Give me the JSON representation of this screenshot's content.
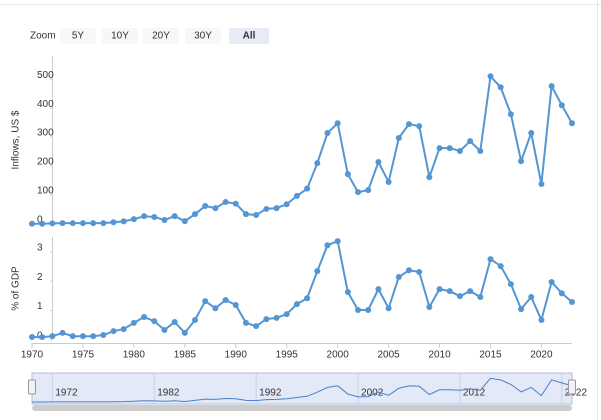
{
  "range_selector": {
    "label": "Zoom",
    "buttons": [
      "5Y",
      "10Y",
      "20Y",
      "30Y",
      "All"
    ],
    "selected": 4
  },
  "chart_data": [
    {
      "type": "line",
      "ylabel": "Inflows, US $",
      "color": "#5496d4",
      "x": [
        1970,
        1971,
        1972,
        1973,
        1974,
        1975,
        1976,
        1977,
        1978,
        1979,
        1980,
        1981,
        1982,
        1983,
        1984,
        1985,
        1986,
        1987,
        1988,
        1989,
        1990,
        1991,
        1992,
        1993,
        1994,
        1995,
        1996,
        1997,
        1998,
        1999,
        2000,
        2001,
        2002,
        2003,
        2004,
        2005,
        2006,
        2007,
        2008,
        2009,
        2010,
        2011,
        2012,
        2013,
        2014,
        2015,
        2016,
        2017,
        2018,
        2019,
        2020,
        2021,
        2022,
        2023
      ],
      "values": [
        1,
        1,
        2,
        3,
        3,
        3,
        3,
        3,
        6,
        9,
        17,
        27,
        24,
        14,
        27,
        10,
        34,
        62,
        55,
        76,
        70,
        34,
        31,
        52,
        55,
        68,
        97,
        122,
        210,
        314,
        348,
        172,
        110,
        117,
        214,
        145,
        297,
        345,
        338,
        162,
        262,
        262,
        252,
        286,
        252,
        510,
        472,
        379,
        217,
        314,
        138,
        476,
        410,
        348
      ],
      "xlim": [
        1970,
        2023
      ],
      "ylim": [
        0,
        580
      ],
      "yticks": [
        0,
        100,
        200,
        300,
        400,
        500
      ]
    },
    {
      "type": "line",
      "ylabel": "% of GDP",
      "color": "#5496d4",
      "x": [
        1970,
        1971,
        1972,
        1973,
        1974,
        1975,
        1976,
        1977,
        1978,
        1979,
        1980,
        1981,
        1982,
        1983,
        1984,
        1985,
        1986,
        1987,
        1988,
        1989,
        1990,
        1991,
        1992,
        1993,
        1994,
        1995,
        1996,
        1997,
        1998,
        1999,
        2000,
        2001,
        2002,
        2003,
        2004,
        2005,
        2006,
        2007,
        2008,
        2009,
        2010,
        2011,
        2012,
        2013,
        2014,
        2015,
        2016,
        2017,
        2018,
        2019,
        2020,
        2021,
        2022,
        2023
      ],
      "values": [
        0.1,
        0.1,
        0.13,
        0.24,
        0.13,
        0.13,
        0.13,
        0.17,
        0.3,
        0.37,
        0.58,
        0.78,
        0.64,
        0.34,
        0.61,
        0.24,
        0.68,
        1.32,
        1.08,
        1.36,
        1.19,
        0.58,
        0.47,
        0.71,
        0.75,
        0.88,
        1.22,
        1.42,
        2.34,
        3.22,
        3.36,
        1.63,
        1.02,
        1.02,
        1.73,
        1.08,
        2.14,
        2.37,
        2.31,
        1.12,
        1.73,
        1.66,
        1.49,
        1.66,
        1.46,
        2.75,
        2.51,
        1.9,
        1.05,
        1.46,
        0.68,
        1.97,
        1.59,
        1.29
      ],
      "xlim": [
        1970,
        2023
      ],
      "ylim": [
        0,
        3.5
      ],
      "yticks": [
        0,
        1,
        2,
        3
      ],
      "xticks": [
        1970,
        1975,
        1980,
        1985,
        1990,
        1995,
        2000,
        2005,
        2010,
        2015,
        2020
      ]
    }
  ],
  "navigator": {
    "xticks": [
      1972,
      1982,
      1992,
      2002,
      2012,
      2022
    ]
  }
}
